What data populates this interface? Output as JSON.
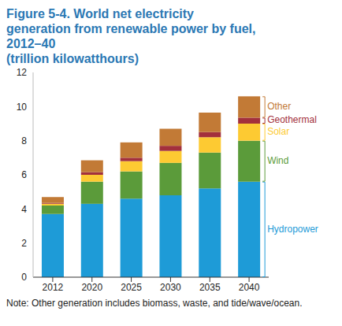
{
  "chart_data": {
    "type": "bar",
    "stacked": true,
    "grid": false,
    "legend": "right",
    "title": "Figure 5-4. World net electricity generation from renewable power by fuel, 2012–40",
    "subtitle": "(trillion kilowatthours)",
    "note": "Note: Other generation includes biomass, waste, and tide/wave/ocean.",
    "categories": [
      "2012",
      "2020",
      "2025",
      "2030",
      "2035",
      "2040"
    ],
    "ylim": [
      0,
      12
    ],
    "yticks": [
      0,
      2,
      4,
      6,
      8,
      10,
      12
    ],
    "series": [
      {
        "name": "Hydropower",
        "color": "#1e9bd7",
        "values": [
          3.7,
          4.3,
          4.6,
          4.8,
          5.2,
          5.6
        ]
      },
      {
        "name": "Wind",
        "color": "#5b9b3a",
        "values": [
          0.5,
          1.3,
          1.6,
          1.9,
          2.1,
          2.4
        ]
      },
      {
        "name": "Solar",
        "color": "#fdca32",
        "values": [
          0.1,
          0.4,
          0.6,
          0.7,
          0.9,
          1.0
        ]
      },
      {
        "name": "Geothermal",
        "color": "#a3303c",
        "values": [
          0.05,
          0.15,
          0.2,
          0.3,
          0.3,
          0.35
        ]
      },
      {
        "name": "Other",
        "color": "#c27a36",
        "values": [
          0.35,
          0.7,
          0.9,
          1.0,
          1.15,
          1.25
        ]
      }
    ]
  }
}
